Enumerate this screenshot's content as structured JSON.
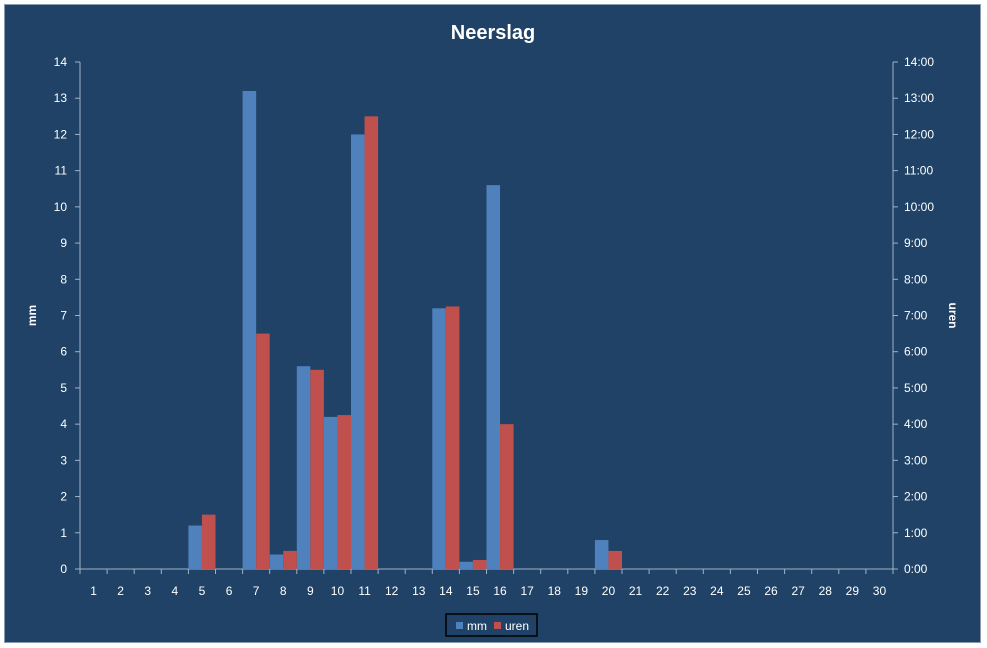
{
  "colors": {
    "background": "#1f4266",
    "axis": "#9fb3c8",
    "text": "#ffffff",
    "series_mm": "#4f81bd",
    "series_uren": "#c0504d"
  },
  "chart_data": {
    "type": "bar",
    "title": "Neerslag",
    "xlabel": "",
    "ylabel": "mm",
    "ylabel_right": "uren",
    "ylim": [
      0,
      14
    ],
    "ylim_right": [
      0,
      14
    ],
    "grid": false,
    "legend_position": "bottom",
    "categories": [
      "1",
      "2",
      "3",
      "4",
      "5",
      "6",
      "7",
      "8",
      "9",
      "10",
      "11",
      "12",
      "13",
      "14",
      "15",
      "16",
      "17",
      "18",
      "19",
      "20",
      "21",
      "22",
      "23",
      "24",
      "25",
      "26",
      "27",
      "28",
      "29",
      "30"
    ],
    "y_ticks_left": [
      "0",
      "1",
      "2",
      "3",
      "4",
      "5",
      "6",
      "7",
      "8",
      "9",
      "10",
      "11",
      "12",
      "13",
      "14"
    ],
    "y_ticks_right": [
      "0:00",
      "1:00",
      "2:00",
      "3:00",
      "4:00",
      "5:00",
      "6:00",
      "7:00",
      "8:00",
      "9:00",
      "10:00",
      "11:00",
      "12:00",
      "13:00",
      "14:00"
    ],
    "series": [
      {
        "name": "mm",
        "axis": "left",
        "values": [
          0,
          0,
          0,
          0,
          1.2,
          0,
          13.2,
          0.4,
          5.6,
          4.2,
          12.0,
          0,
          0,
          7.2,
          0.2,
          10.6,
          0,
          0,
          0,
          0.8,
          0,
          0,
          0,
          0,
          0,
          0,
          0,
          0,
          0,
          0
        ]
      },
      {
        "name": "uren",
        "axis": "right",
        "values": [
          0,
          0,
          0,
          0,
          1.5,
          0,
          6.5,
          0.5,
          5.5,
          4.25,
          12.5,
          0,
          0,
          7.25,
          0.25,
          4.0,
          0,
          0,
          0,
          0.5,
          0,
          0,
          0,
          0,
          0,
          0,
          0,
          0,
          0,
          0
        ]
      }
    ]
  }
}
